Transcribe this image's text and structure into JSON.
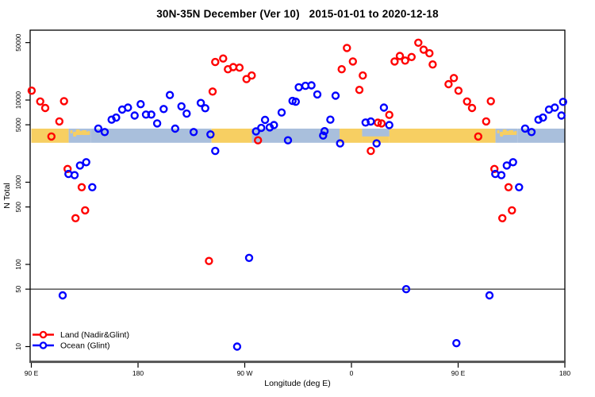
{
  "title": "30N-35N December (Ver 10)   2015-01-01 to 2020-12-18",
  "chart_data": {
    "type": "scatter",
    "title": "30N-35N December (Ver 10)   2015-01-01 to 2020-12-18",
    "xlabel": "Longitude (deg E)",
    "ylabel": "N Total",
    "x_axis": {
      "min_deg": 90,
      "max_deg": 540,
      "ticks": [
        {
          "label": "90 E",
          "deg": 90
        },
        {
          "label": "180",
          "deg": 180
        },
        {
          "label": "90 W",
          "deg": 270
        },
        {
          "label": "0",
          "deg": 360
        },
        {
          "label": "90 E",
          "deg": 450
        },
        {
          "label": "180",
          "deg": 540
        }
      ]
    },
    "y_axis": {
      "scale": "log10",
      "tick_values": [
        10,
        50,
        100,
        500,
        1000,
        5000,
        10000,
        50000
      ],
      "range_note": "log axis, approx 6.6 to 70000"
    },
    "reference_line_value": 50,
    "map_band": {
      "description": "land/ocean strip for latitude band 30N-35N drawn across the plot",
      "value_top": 4490,
      "value_bottom": 3020,
      "ocean_color": "#a9bfdc",
      "land_color": "#f7cf62",
      "segments": [
        {
          "from_deg": 90,
          "to_deg": 121.5,
          "type": "land"
        },
        {
          "from_deg": 121.5,
          "to_deg": 140,
          "type": "islands"
        },
        {
          "from_deg": 140,
          "to_deg": 242,
          "type": "ocean"
        },
        {
          "from_deg": 242,
          "to_deg": 276,
          "type": "land"
        },
        {
          "from_deg": 276,
          "to_deg": 350,
          "type": "ocean"
        },
        {
          "from_deg": 350,
          "to_deg": 369,
          "type": "land"
        },
        {
          "from_deg": 369,
          "to_deg": 392,
          "type": "coast"
        },
        {
          "from_deg": 392,
          "to_deg": 481.5,
          "type": "land"
        },
        {
          "from_deg": 481.5,
          "to_deg": 500,
          "type": "islands"
        },
        {
          "from_deg": 500,
          "to_deg": 540,
          "type": "ocean"
        }
      ]
    },
    "legend": {
      "entries": [
        {
          "label": "Land (Nadir&Glint)",
          "color": "#ff0000"
        },
        {
          "label": "Ocean (Glint)",
          "color": "#0000ff"
        }
      ]
    },
    "series": [
      {
        "name": "Land (Nadir&Glint)",
        "color": "#ff0000",
        "points": [
          [
            90.3,
            13000
          ],
          [
            97.5,
            9600
          ],
          [
            101.7,
            8000
          ],
          [
            106.9,
            3600
          ],
          [
            113.6,
            5500
          ],
          [
            117.6,
            9700
          ],
          [
            120.6,
            1450
          ],
          [
            127.3,
            365
          ],
          [
            132.5,
            870
          ],
          [
            135.4,
            455
          ],
          [
            239.8,
            110
          ],
          [
            242.9,
            12700
          ],
          [
            245.1,
            29000
          ],
          [
            251.8,
            32000
          ],
          [
            255.8,
            23700
          ],
          [
            260.3,
            25200
          ],
          [
            265.6,
            24800
          ],
          [
            271.5,
            18000
          ],
          [
            275.9,
            19900
          ],
          [
            281.2,
            3240
          ],
          [
            351.8,
            23700
          ],
          [
            356.2,
            43000
          ],
          [
            361.2,
            29500
          ],
          [
            366.7,
            13300
          ],
          [
            369.6,
            19900
          ],
          [
            376.3,
            2400
          ],
          [
            382.3,
            5300
          ],
          [
            385.4,
            5200
          ],
          [
            391.9,
            6600
          ],
          [
            396.4,
            29500
          ],
          [
            400.8,
            34400
          ],
          [
            405.3,
            30200
          ],
          [
            410.7,
            33400
          ],
          [
            416.4,
            49800
          ],
          [
            420.9,
            41000
          ],
          [
            425.8,
            37100
          ],
          [
            428.5,
            27100
          ],
          [
            441.9,
            15600
          ],
          [
            446.4,
            18500
          ],
          [
            450.3,
            13000
          ],
          [
            457.5,
            9600
          ],
          [
            461.7,
            8000
          ],
          [
            466.9,
            3600
          ],
          [
            473.6,
            5500
          ],
          [
            477.6,
            9700
          ],
          [
            480.6,
            1450
          ],
          [
            487.3,
            365
          ],
          [
            492.5,
            870
          ],
          [
            495.4,
            455
          ]
        ]
      },
      {
        "name": "Ocean (Glint)",
        "color": "#0000ff",
        "points": [
          [
            116.4,
            42
          ],
          [
            121.3,
            1260
          ],
          [
            126.5,
            1220
          ],
          [
            131.0,
            1600
          ],
          [
            136.3,
            1750
          ],
          [
            141.4,
            870
          ],
          [
            146.5,
            4500
          ],
          [
            151.9,
            4080
          ],
          [
            157.7,
            5770
          ],
          [
            161.5,
            6120
          ],
          [
            166.6,
            7650
          ],
          [
            171.5,
            8100
          ],
          [
            177.1,
            6480
          ],
          [
            182.2,
            8900
          ],
          [
            186.7,
            6650
          ],
          [
            191.2,
            6650
          ],
          [
            196.1,
            5200
          ],
          [
            201.6,
            7770
          ],
          [
            206.8,
            11500
          ],
          [
            211.3,
            4490
          ],
          [
            216.6,
            8380
          ],
          [
            221.0,
            6840
          ],
          [
            226.9,
            4080
          ],
          [
            232.9,
            9200
          ],
          [
            236.7,
            7950
          ],
          [
            241.1,
            3820
          ],
          [
            245.1,
            2400
          ],
          [
            263.6,
            10
          ],
          [
            273.7,
            120
          ],
          [
            279.5,
            4150
          ],
          [
            283.9,
            4580
          ],
          [
            287.1,
            5740
          ],
          [
            291.1,
            4650
          ],
          [
            294.6,
            4960
          ],
          [
            301.1,
            7050
          ],
          [
            306.5,
            3240
          ],
          [
            310.3,
            9760
          ],
          [
            313.0,
            9540
          ],
          [
            315.6,
            14300
          ],
          [
            321.2,
            14900
          ],
          [
            326.3,
            15100
          ],
          [
            331.2,
            11700
          ],
          [
            336.1,
            3700
          ],
          [
            337.3,
            4180
          ],
          [
            342.2,
            5770
          ],
          [
            346.6,
            11300
          ],
          [
            350.4,
            2970
          ],
          [
            371.9,
            5330
          ],
          [
            376.3,
            5480
          ],
          [
            381.2,
            2970
          ],
          [
            387.4,
            8100
          ],
          [
            391.9,
            4960
          ],
          [
            406.2,
            50
          ],
          [
            448.5,
            11
          ],
          [
            476.4,
            42
          ],
          [
            481.3,
            1260
          ],
          [
            486.5,
            1220
          ],
          [
            491.0,
            1600
          ],
          [
            496.3,
            1750
          ],
          [
            501.4,
            870
          ],
          [
            506.5,
            4500
          ],
          [
            511.9,
            4080
          ],
          [
            517.7,
            5770
          ],
          [
            521.5,
            6120
          ],
          [
            526.6,
            7650
          ],
          [
            531.5,
            8100
          ],
          [
            537.1,
            6480
          ],
          [
            538.5,
            9500
          ]
        ]
      }
    ]
  }
}
